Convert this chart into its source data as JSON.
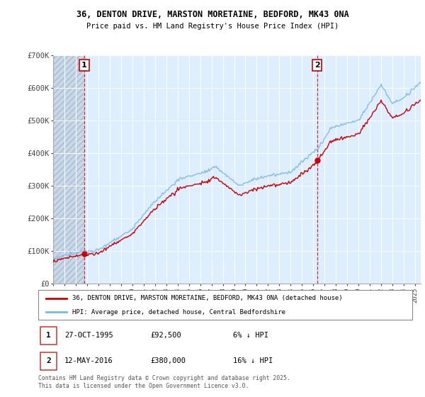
{
  "title1": "36, DENTON DRIVE, MARSTON MORETAINE, BEDFORD, MK43 0NA",
  "title2": "Price paid vs. HM Land Registry's House Price Index (HPI)",
  "sale1_date": "27-OCT-1995",
  "sale1_price": 92500,
  "sale2_date": "12-MAY-2016",
  "sale2_price": 380000,
  "legend1": "36, DENTON DRIVE, MARSTON MORETAINE, BEDFORD, MK43 0NA (detached house)",
  "legend2": "HPI: Average price, detached house, Central Bedfordshire",
  "footer": "Contains HM Land Registry data © Crown copyright and database right 2025.\nThis data is licensed under the Open Government Licence v3.0.",
  "hpi_color": "#7ab8e8",
  "price_color": "#cc0000",
  "vline_color": "#cc0000",
  "box_border_color": "#cc0000",
  "ylim": [
    0,
    700000
  ],
  "yticks": [
    0,
    100000,
    200000,
    300000,
    400000,
    500000,
    600000,
    700000
  ],
  "ytick_labels": [
    "£0",
    "£100K",
    "£200K",
    "£300K",
    "£400K",
    "£500K",
    "£600K",
    "£700K"
  ],
  "background_color": "#ddeeff",
  "plot_bg_color": "#ddeeff",
  "grid_color": "#ffffff",
  "hatch_color": "#c8d8e8"
}
